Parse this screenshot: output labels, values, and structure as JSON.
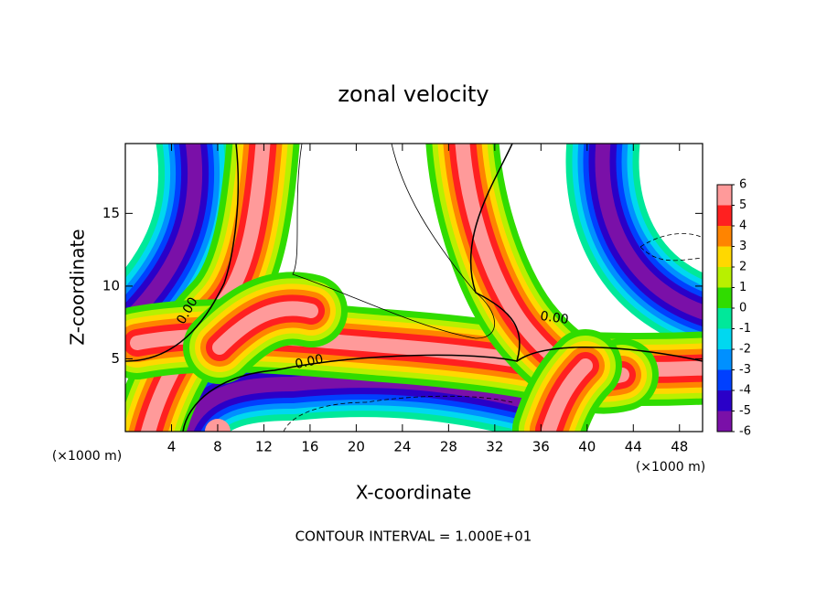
{
  "chart_data": {
    "type": "contour",
    "title": "zonal velocity",
    "x_label": "X-coordinate",
    "y_label": "Z-coordinate",
    "x_unit": "(×1000 m)",
    "y_unit": "(×1000 m)",
    "footer": "CONTOUR INTERVAL = 1.000E+01",
    "xlim": [
      0,
      50
    ],
    "xticks": [
      4,
      8,
      12,
      16,
      20,
      24,
      28,
      32,
      36,
      40,
      44,
      48
    ],
    "ylim": [
      0,
      19.8
    ],
    "yticks": [
      5,
      10,
      15
    ],
    "colorbar_ticks": [
      -6,
      -5,
      -4,
      -3,
      -2,
      -1,
      0,
      1,
      2,
      3,
      4,
      5,
      6
    ],
    "colorbar_colors": [
      "#7a10a8",
      "#2a00c8",
      "#0040ff",
      "#0090ff",
      "#00d8f0",
      "#00e89a",
      "#30dc00",
      "#b8f000",
      "#ffd800",
      "#ff8400",
      "#ff2020",
      "#ff9a9a"
    ],
    "contour_labels": [
      {
        "value": 0,
        "label": "0.00"
      },
      {
        "value": 0,
        "label": "0.00"
      },
      {
        "value": 0,
        "label": "0.00"
      }
    ]
  }
}
